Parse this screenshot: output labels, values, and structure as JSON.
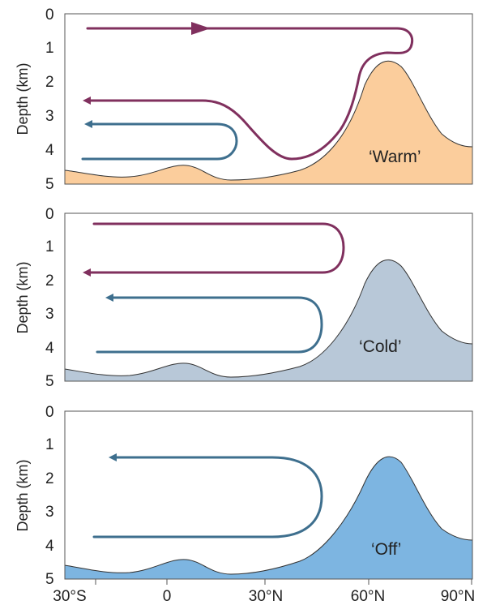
{
  "colors": {
    "deep_cell": "#3e6f8e",
    "upper_cell": "#80305e",
    "warm_floor": "#fbcd9c",
    "cold_floor": "#b8c8d8",
    "off_floor": "#7db5e1"
  },
  "axes": {
    "ylabel": "Depth (km)",
    "depth_ticks": [
      "0",
      "1",
      "2",
      "3",
      "4",
      "5"
    ],
    "lat_ticks": [
      "30°S",
      "0",
      "30°N",
      "60°N",
      "90°N"
    ]
  },
  "panels": [
    {
      "label": "‘Warm’",
      "floor_color": "#fbcd9c",
      "cells": [
        {
          "color": "#80305e",
          "kind": "upper"
        },
        {
          "color": "#3e6f8e",
          "kind": "deep"
        }
      ]
    },
    {
      "label": "‘Cold’",
      "floor_color": "#b8c8d8",
      "cells": [
        {
          "color": "#80305e",
          "kind": "upper"
        },
        {
          "color": "#3e6f8e",
          "kind": "deep"
        }
      ]
    },
    {
      "label": "‘Off’",
      "floor_color": "#7db5e1",
      "cells": [
        {
          "color": "#3e6f8e",
          "kind": "deep"
        }
      ]
    }
  ]
}
